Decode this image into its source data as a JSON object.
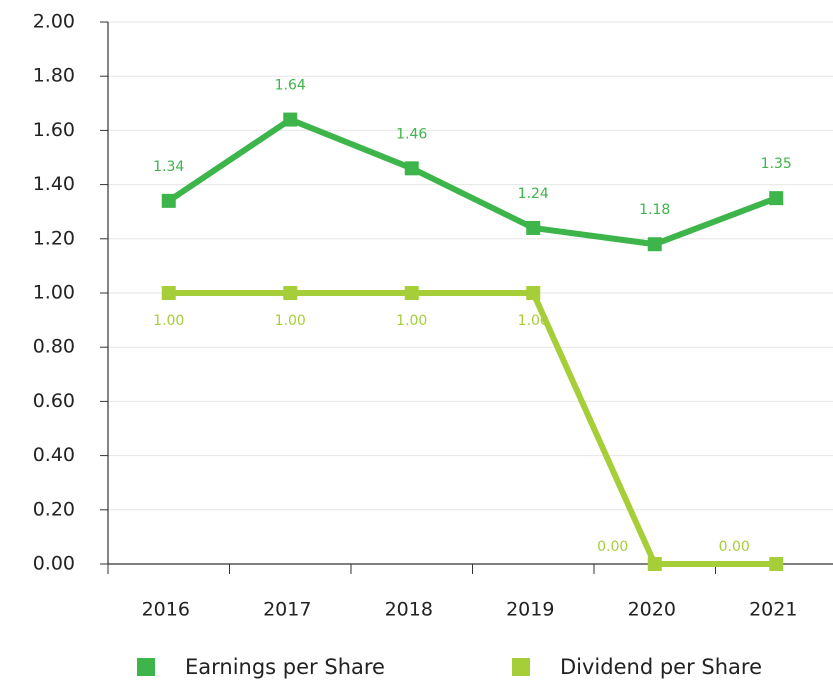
{
  "chart_data": {
    "type": "line",
    "categories": [
      "2016",
      "2017",
      "2018",
      "2019",
      "2020",
      "2021"
    ],
    "series": [
      {
        "name": "Earnings per Share",
        "color": "#3db54a",
        "values": [
          1.34,
          1.64,
          1.46,
          1.24,
          1.18,
          1.35
        ]
      },
      {
        "name": "Dividend per Share",
        "color": "#a6ce39",
        "values": [
          1,
          1,
          1,
          1,
          0,
          0
        ],
        "value_labels": [
          "1.00",
          "1.00",
          "1.00",
          "1.00",
          "0.00",
          "0.00"
        ]
      }
    ],
    "ylim": [
      0,
      2
    ],
    "yticks": [
      {
        "value": 0,
        "label": "0.00"
      },
      {
        "value": 0.2,
        "label": "0.20"
      },
      {
        "value": 0.4,
        "label": "0.40"
      },
      {
        "value": 0.6,
        "label": "0.60"
      },
      {
        "value": 0.8,
        "label": "0.80"
      },
      {
        "value": 1,
        "label": "1.00"
      },
      {
        "value": 1.2,
        "label": "1.20"
      },
      {
        "value": 1.4,
        "label": "1.40"
      },
      {
        "value": 1.6,
        "label": "1.60"
      },
      {
        "value": 1.8,
        "label": "1.80"
      },
      {
        "value": 2,
        "label": "2.00"
      }
    ],
    "grid": true
  }
}
